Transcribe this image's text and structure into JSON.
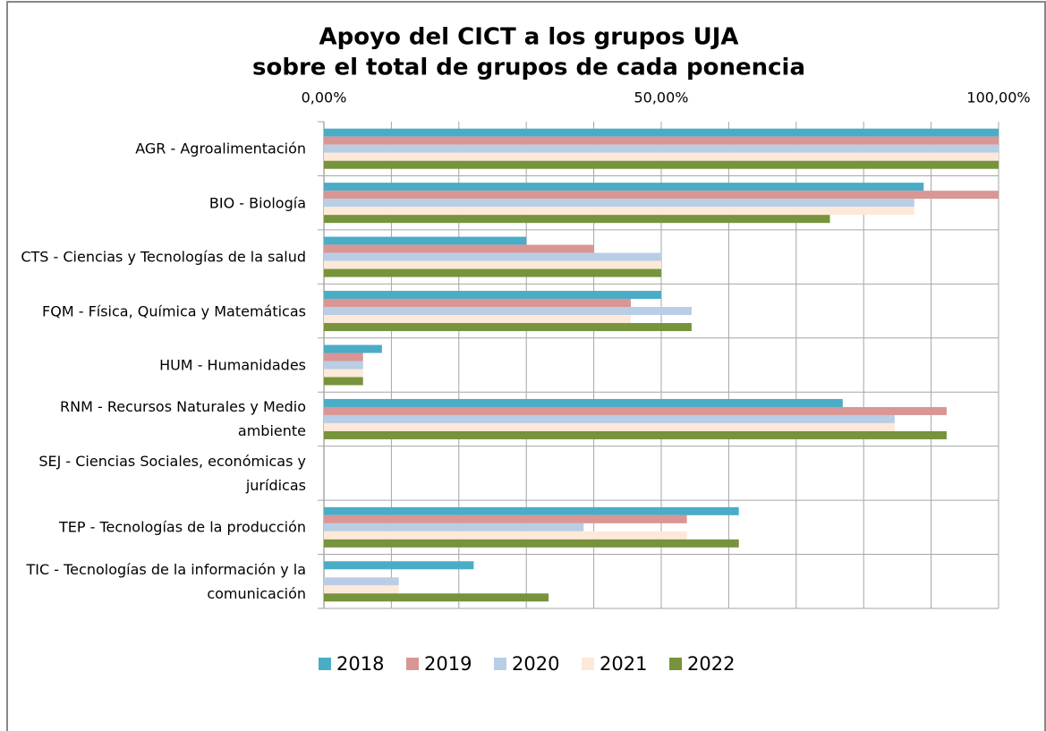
{
  "chart_data": {
    "type": "hbar",
    "title": "Apoyo del CICT a los grupos UJA",
    "subtitle": "sobre el total de grupos de cada ponencia",
    "categories": [
      "AGR - Agroalimentación",
      "BIO - Biología",
      "CTS - Ciencias y Tecnologías de la salud",
      "FQM - Física, Química y Matemáticas",
      "HUM - Humanidades",
      "RNM - Recursos Naturales y Medio ambiente",
      "SEJ - Ciencias Sociales, económicas y jurídicas",
      "TEP - Tecnologías de la producción",
      "TIC - Tecnologías de la información y la comunicación"
    ],
    "series": [
      {
        "name": "2018",
        "color": "#4bacc6",
        "values": [
          100,
          88.9,
          30,
          50,
          8.6,
          76.9,
          0,
          61.5,
          22.2
        ]
      },
      {
        "name": "2019",
        "color": "#d99694",
        "values": [
          100,
          100,
          40,
          45.5,
          5.8,
          92.3,
          0,
          53.8,
          0
        ]
      },
      {
        "name": "2020",
        "color": "#b9cde5",
        "values": [
          100,
          87.5,
          50,
          54.5,
          5.8,
          84.6,
          0,
          38.5,
          11.1
        ]
      },
      {
        "name": "2021",
        "color": "#fde9d9",
        "values": [
          100,
          87.5,
          50,
          45.5,
          5.8,
          84.6,
          0,
          53.8,
          11.1
        ]
      },
      {
        "name": "2022",
        "color": "#77933c",
        "values": [
          100,
          75,
          50,
          54.5,
          5.8,
          92.3,
          0,
          61.5,
          33.3
        ]
      }
    ],
    "xlim": [
      0,
      100
    ],
    "xticks": [
      {
        "value": 0,
        "label": "0,00%"
      },
      {
        "value": 50,
        "label": "50,00%"
      },
      {
        "value": 100,
        "label": "100,00%"
      }
    ],
    "minor_xticks": [
      10,
      20,
      30,
      40,
      60,
      70,
      80,
      90
    ],
    "grid": true,
    "legend": "bottom"
  }
}
